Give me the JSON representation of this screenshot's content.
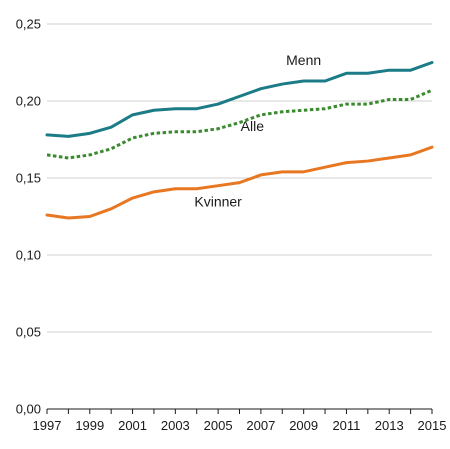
{
  "chart_data": {
    "type": "line",
    "title": "",
    "xlabel": "",
    "ylabel": "",
    "x": [
      1997,
      1998,
      1999,
      2000,
      2001,
      2002,
      2003,
      2004,
      2005,
      2006,
      2007,
      2008,
      2009,
      2010,
      2011,
      2012,
      2013,
      2014,
      2015
    ],
    "xlim": [
      1997,
      2015
    ],
    "ylim": [
      0,
      0.25
    ],
    "x_ticks": [
      1997,
      1999,
      2001,
      2003,
      2005,
      2007,
      2009,
      2011,
      2013,
      2015
    ],
    "x_tick_labels": [
      "1997",
      "1999",
      "2001",
      "2003",
      "2005",
      "2007",
      "2009",
      "2011",
      "2013",
      "2015"
    ],
    "y_ticks": [
      0,
      0.05,
      0.1,
      0.15,
      0.2,
      0.25
    ],
    "y_tick_labels": [
      "0,00",
      "0,05",
      "0,10",
      "0,15",
      "0,20",
      "0,25"
    ],
    "grid": "horizontal",
    "legend": "inline labels",
    "series": [
      {
        "name": "Menn",
        "color": "#1b7b86",
        "dash": "solid",
        "values": [
          0.178,
          0.177,
          0.179,
          0.183,
          0.191,
          0.194,
          0.195,
          0.195,
          0.198,
          0.203,
          0.208,
          0.211,
          0.213,
          0.213,
          0.218,
          0.218,
          0.22,
          0.22,
          0.225
        ]
      },
      {
        "name": "Alle",
        "color": "#3a8a2e",
        "dash": "dotted",
        "values": [
          0.165,
          0.163,
          0.165,
          0.169,
          0.176,
          0.179,
          0.18,
          0.18,
          0.182,
          0.186,
          0.191,
          0.193,
          0.194,
          0.195,
          0.198,
          0.198,
          0.201,
          0.201,
          0.207
        ]
      },
      {
        "name": "Kvinner",
        "color": "#e87722",
        "dash": "solid",
        "values": [
          0.126,
          0.124,
          0.125,
          0.13,
          0.137,
          0.141,
          0.143,
          0.143,
          0.145,
          0.147,
          0.152,
          0.154,
          0.154,
          0.157,
          0.16,
          0.161,
          0.163,
          0.165,
          0.17
        ]
      }
    ],
    "annotations": [
      {
        "text": "Menn",
        "x": 2009,
        "y": 0.2235,
        "series": 0
      },
      {
        "text": "Alle",
        "x": 2006.6,
        "y": 0.1805,
        "series": 1
      },
      {
        "text": "Kvinner",
        "x": 2005,
        "y": 0.1315,
        "series": 2
      }
    ]
  }
}
